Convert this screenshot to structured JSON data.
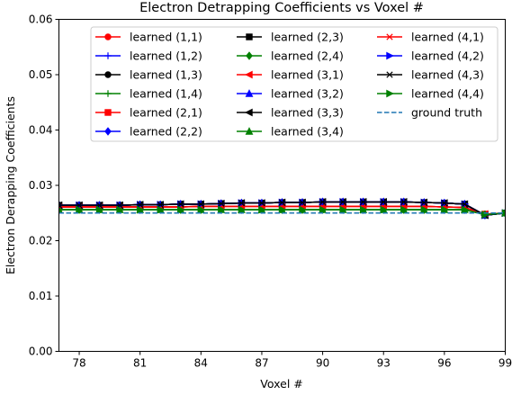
{
  "chart_data": {
    "type": "line",
    "title": "Electron Detrapping Coefficients vs Voxel #",
    "xlabel": "Voxel #",
    "ylabel": "Electron Derapping Coefficients",
    "xlim": [
      77,
      99
    ],
    "ylim": [
      0.0,
      0.06
    ],
    "xticks": [
      78,
      81,
      84,
      87,
      90,
      93,
      96,
      99
    ],
    "yticks": [
      0.0,
      0.01,
      0.02,
      0.03,
      0.04,
      0.05,
      0.06
    ],
    "ytick_labels": [
      "0.00",
      "0.01",
      "0.02",
      "0.03",
      "0.04",
      "0.05",
      "0.06"
    ],
    "grid": false,
    "legend_position": "top-center",
    "x": [
      77,
      78,
      79,
      80,
      81,
      82,
      83,
      84,
      85,
      86,
      87,
      88,
      89,
      90,
      91,
      92,
      93,
      94,
      95,
      96,
      97,
      98,
      99
    ],
    "series": [
      {
        "name": "learned (1,1)",
        "color": "#ff0000",
        "marker": "circle",
        "values": [
          0.0261,
          0.0261,
          0.0261,
          0.0261,
          0.0261,
          0.0261,
          0.0261,
          0.0262,
          0.0262,
          0.0262,
          0.0262,
          0.0262,
          0.0262,
          0.0262,
          0.0262,
          0.0262,
          0.0262,
          0.0262,
          0.0262,
          0.0261,
          0.026,
          0.0248,
          0.025
        ]
      },
      {
        "name": "learned (1,2)",
        "color": "#0000ff",
        "marker": "plus",
        "values": [
          0.0264,
          0.0264,
          0.0264,
          0.0264,
          0.0265,
          0.0265,
          0.0266,
          0.0266,
          0.0267,
          0.0268,
          0.0268,
          0.0269,
          0.0269,
          0.027,
          0.027,
          0.027,
          0.027,
          0.027,
          0.0269,
          0.0268,
          0.0266,
          0.0246,
          0.025
        ]
      },
      {
        "name": "learned (1,3)",
        "color": "#000000",
        "marker": "circle",
        "values": [
          0.0264,
          0.0264,
          0.0264,
          0.0264,
          0.0265,
          0.0265,
          0.0266,
          0.0266,
          0.0267,
          0.0268,
          0.0268,
          0.0269,
          0.0269,
          0.027,
          0.027,
          0.027,
          0.027,
          0.027,
          0.0269,
          0.0268,
          0.0266,
          0.0246,
          0.025
        ]
      },
      {
        "name": "learned (1,4)",
        "color": "#008000",
        "marker": "plus",
        "values": [
          0.0256,
          0.0256,
          0.0256,
          0.0256,
          0.0256,
          0.0256,
          0.0256,
          0.0256,
          0.0256,
          0.0256,
          0.0256,
          0.0256,
          0.0256,
          0.0256,
          0.0256,
          0.0256,
          0.0256,
          0.0256,
          0.0256,
          0.0256,
          0.0256,
          0.0247,
          0.025
        ]
      },
      {
        "name": "learned (2,1)",
        "color": "#ff0000",
        "marker": "square",
        "values": [
          0.0261,
          0.0261,
          0.0261,
          0.0261,
          0.0261,
          0.0261,
          0.0261,
          0.0262,
          0.0262,
          0.0262,
          0.0262,
          0.0262,
          0.0262,
          0.0262,
          0.0262,
          0.0262,
          0.0262,
          0.0262,
          0.0262,
          0.0261,
          0.026,
          0.0248,
          0.025
        ]
      },
      {
        "name": "learned (2,2)",
        "color": "#0000ff",
        "marker": "diamond",
        "values": [
          0.0264,
          0.0264,
          0.0264,
          0.0264,
          0.0265,
          0.0265,
          0.0266,
          0.0266,
          0.0267,
          0.0268,
          0.0268,
          0.0269,
          0.0269,
          0.027,
          0.027,
          0.027,
          0.027,
          0.027,
          0.0269,
          0.0268,
          0.0266,
          0.0246,
          0.025
        ]
      },
      {
        "name": "learned (2,3)",
        "color": "#000000",
        "marker": "square",
        "values": [
          0.0264,
          0.0264,
          0.0264,
          0.0264,
          0.0265,
          0.0265,
          0.0266,
          0.0266,
          0.0267,
          0.0268,
          0.0268,
          0.0269,
          0.0269,
          0.027,
          0.027,
          0.027,
          0.027,
          0.027,
          0.0269,
          0.0268,
          0.0266,
          0.0246,
          0.025
        ]
      },
      {
        "name": "learned (2,4)",
        "color": "#008000",
        "marker": "diamond",
        "values": [
          0.0256,
          0.0256,
          0.0256,
          0.0256,
          0.0256,
          0.0256,
          0.0256,
          0.0256,
          0.0256,
          0.0256,
          0.0256,
          0.0256,
          0.0256,
          0.0256,
          0.0256,
          0.0256,
          0.0256,
          0.0256,
          0.0256,
          0.0256,
          0.0256,
          0.0247,
          0.025
        ]
      },
      {
        "name": "learned (3,1)",
        "color": "#ff0000",
        "marker": "triangle-left",
        "values": [
          0.0261,
          0.0261,
          0.0261,
          0.0261,
          0.0261,
          0.0261,
          0.0261,
          0.0262,
          0.0262,
          0.0262,
          0.0262,
          0.0262,
          0.0262,
          0.0262,
          0.0262,
          0.0262,
          0.0262,
          0.0262,
          0.0262,
          0.0261,
          0.026,
          0.0248,
          0.025
        ]
      },
      {
        "name": "learned (3,2)",
        "color": "#0000ff",
        "marker": "triangle-up",
        "values": [
          0.0264,
          0.0264,
          0.0264,
          0.0264,
          0.0265,
          0.0265,
          0.0266,
          0.0266,
          0.0267,
          0.0268,
          0.0268,
          0.0269,
          0.0269,
          0.027,
          0.027,
          0.027,
          0.027,
          0.027,
          0.0269,
          0.0268,
          0.0266,
          0.0246,
          0.025
        ]
      },
      {
        "name": "learned (3,3)",
        "color": "#000000",
        "marker": "triangle-left",
        "values": [
          0.0264,
          0.0264,
          0.0264,
          0.0264,
          0.0265,
          0.0265,
          0.0266,
          0.0266,
          0.0267,
          0.0268,
          0.0268,
          0.0269,
          0.0269,
          0.027,
          0.027,
          0.027,
          0.027,
          0.027,
          0.0269,
          0.0268,
          0.0266,
          0.0246,
          0.025
        ]
      },
      {
        "name": "learned (3,4)",
        "color": "#008000",
        "marker": "triangle-up",
        "values": [
          0.0256,
          0.0256,
          0.0256,
          0.0256,
          0.0256,
          0.0256,
          0.0256,
          0.0256,
          0.0256,
          0.0256,
          0.0256,
          0.0256,
          0.0256,
          0.0256,
          0.0256,
          0.0256,
          0.0256,
          0.0256,
          0.0256,
          0.0256,
          0.0256,
          0.0247,
          0.025
        ]
      },
      {
        "name": "learned (4,1)",
        "color": "#ff0000",
        "marker": "x",
        "values": [
          0.0261,
          0.0261,
          0.0261,
          0.0261,
          0.0261,
          0.0261,
          0.0261,
          0.0262,
          0.0262,
          0.0262,
          0.0262,
          0.0262,
          0.0262,
          0.0262,
          0.0262,
          0.0262,
          0.0262,
          0.0262,
          0.0262,
          0.0261,
          0.026,
          0.0248,
          0.025
        ]
      },
      {
        "name": "learned (4,2)",
        "color": "#0000ff",
        "marker": "triangle-right",
        "values": [
          0.0264,
          0.0264,
          0.0264,
          0.0264,
          0.0265,
          0.0265,
          0.0266,
          0.0266,
          0.0267,
          0.0268,
          0.0268,
          0.0269,
          0.0269,
          0.027,
          0.027,
          0.027,
          0.027,
          0.027,
          0.0269,
          0.0268,
          0.0266,
          0.0246,
          0.025
        ]
      },
      {
        "name": "learned (4,3)",
        "color": "#000000",
        "marker": "x",
        "values": [
          0.0264,
          0.0264,
          0.0264,
          0.0264,
          0.0265,
          0.0265,
          0.0266,
          0.0266,
          0.0267,
          0.0268,
          0.0268,
          0.0269,
          0.0269,
          0.027,
          0.027,
          0.027,
          0.027,
          0.027,
          0.0269,
          0.0268,
          0.0266,
          0.0246,
          0.025
        ]
      },
      {
        "name": "learned (4,4)",
        "color": "#008000",
        "marker": "triangle-right",
        "values": [
          0.0256,
          0.0256,
          0.0256,
          0.0256,
          0.0256,
          0.0256,
          0.0256,
          0.0256,
          0.0256,
          0.0256,
          0.0256,
          0.0256,
          0.0256,
          0.0256,
          0.0256,
          0.0256,
          0.0256,
          0.0256,
          0.0256,
          0.0256,
          0.0256,
          0.0247,
          0.025
        ]
      },
      {
        "name": "ground truth",
        "color": "#1f77b4",
        "marker": "none",
        "dashed": true,
        "values": [
          0.025,
          0.025,
          0.025,
          0.025,
          0.025,
          0.025,
          0.025,
          0.025,
          0.025,
          0.025,
          0.025,
          0.025,
          0.025,
          0.025,
          0.025,
          0.025,
          0.025,
          0.025,
          0.025,
          0.025,
          0.025,
          0.025,
          0.025
        ]
      }
    ]
  }
}
